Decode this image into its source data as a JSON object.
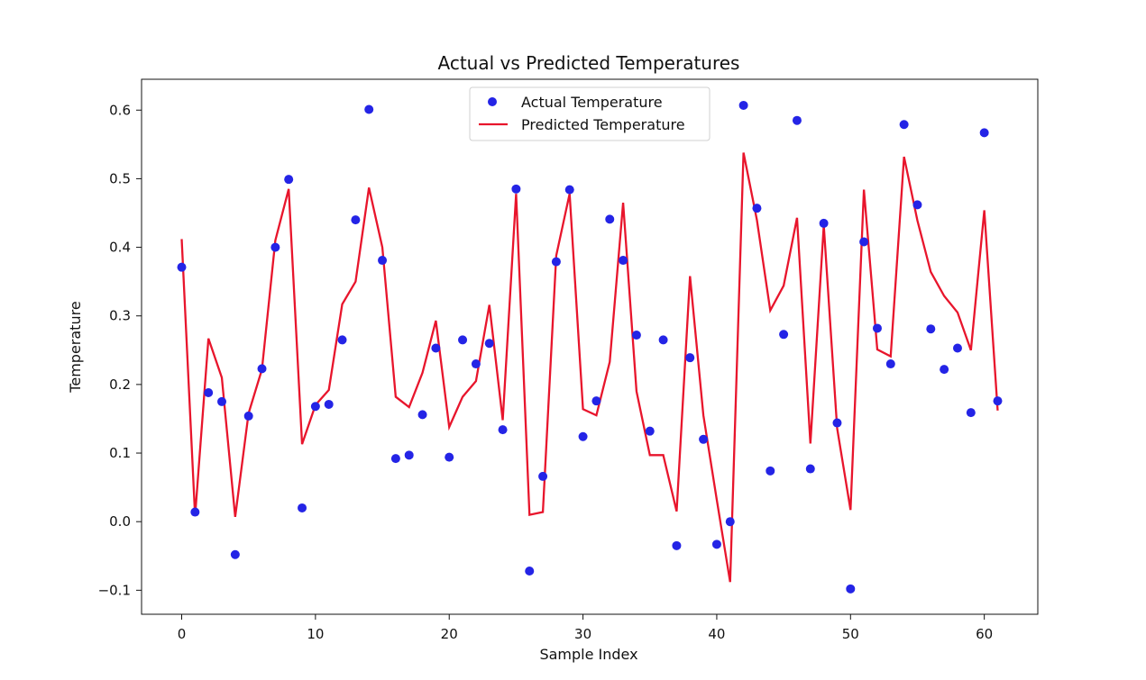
{
  "chart_data": {
    "type": "scatter",
    "title": "Actual vs Predicted Temperatures",
    "xlabel": "Sample Index",
    "ylabel": "Temperature",
    "xlim": [
      -3,
      64
    ],
    "ylim": [
      -0.135,
      0.645
    ],
    "x_ticks": [
      0,
      10,
      20,
      30,
      40,
      50,
      60
    ],
    "y_ticks": [
      -0.1,
      0.0,
      0.1,
      0.2,
      0.3,
      0.4,
      0.5,
      0.6
    ],
    "x_tick_labels": [
      "0",
      "10",
      "20",
      "30",
      "40",
      "50",
      "60"
    ],
    "y_tick_labels": [
      "−0.1",
      "0.0",
      "0.1",
      "0.2",
      "0.3",
      "0.4",
      "0.5",
      "0.6"
    ],
    "grid": false,
    "legend_position": "top-center",
    "series": [
      {
        "name": "Actual Temperature",
        "kind": "scatter",
        "color": "#2424e6",
        "x": [
          0,
          1,
          2,
          3,
          4,
          5,
          6,
          7,
          8,
          9,
          10,
          11,
          12,
          13,
          14,
          15,
          16,
          17,
          18,
          19,
          20,
          21,
          22,
          23,
          24,
          25,
          26,
          27,
          28,
          29,
          30,
          31,
          32,
          33,
          34,
          35,
          36,
          37,
          38,
          39,
          40,
          41,
          42,
          43,
          44,
          45,
          46,
          47,
          48,
          49,
          50,
          51,
          52,
          53,
          54,
          55,
          56,
          57,
          58,
          59,
          60,
          61
        ],
        "y": [
          0.371,
          0.014,
          0.188,
          0.175,
          -0.048,
          0.154,
          0.223,
          0.4,
          0.499,
          0.02,
          0.168,
          0.171,
          0.265,
          0.44,
          0.601,
          0.381,
          0.092,
          0.097,
          0.156,
          0.253,
          0.094,
          0.265,
          0.23,
          0.26,
          0.134,
          0.485,
          -0.072,
          0.066,
          0.379,
          0.484,
          0.124,
          0.176,
          0.441,
          0.381,
          0.272,
          0.132,
          0.265,
          -0.035,
          0.239,
          0.12,
          -0.033,
          0.0,
          0.607,
          0.457,
          0.074,
          0.273,
          0.585,
          0.077,
          0.435,
          0.144,
          -0.098,
          0.408,
          0.282,
          0.23,
          0.579,
          0.462,
          0.281,
          0.222,
          0.253,
          0.159,
          0.567,
          0.176
        ]
      },
      {
        "name": "Predicted Temperature",
        "kind": "line",
        "color": "#e8152c",
        "x": [
          0,
          1,
          2,
          3,
          4,
          5,
          6,
          7,
          8,
          9,
          10,
          11,
          12,
          13,
          14,
          15,
          16,
          17,
          18,
          19,
          20,
          21,
          22,
          23,
          24,
          25,
          26,
          27,
          28,
          29,
          30,
          31,
          32,
          33,
          34,
          35,
          36,
          37,
          38,
          39,
          40,
          41,
          42,
          43,
          44,
          45,
          46,
          47,
          48,
          49,
          50,
          51,
          52,
          53,
          54,
          55,
          56,
          57,
          58,
          59,
          60,
          61
        ],
        "y": [
          0.412,
          0.008,
          0.267,
          0.21,
          0.007,
          0.158,
          0.222,
          0.41,
          0.485,
          0.113,
          0.17,
          0.192,
          0.317,
          0.35,
          0.487,
          0.4,
          0.182,
          0.167,
          0.217,
          0.293,
          0.138,
          0.182,
          0.205,
          0.316,
          0.148,
          0.478,
          0.01,
          0.014,
          0.388,
          0.478,
          0.164,
          0.155,
          0.233,
          0.465,
          0.19,
          0.097,
          0.097,
          0.015,
          0.358,
          0.155,
          0.032,
          -0.088,
          0.538,
          0.44,
          0.308,
          0.344,
          0.443,
          0.114,
          0.432,
          0.136,
          0.017,
          0.484,
          0.251,
          0.241,
          0.532,
          0.439,
          0.364,
          0.329,
          0.305,
          0.25,
          0.454,
          0.162
        ]
      }
    ]
  }
}
